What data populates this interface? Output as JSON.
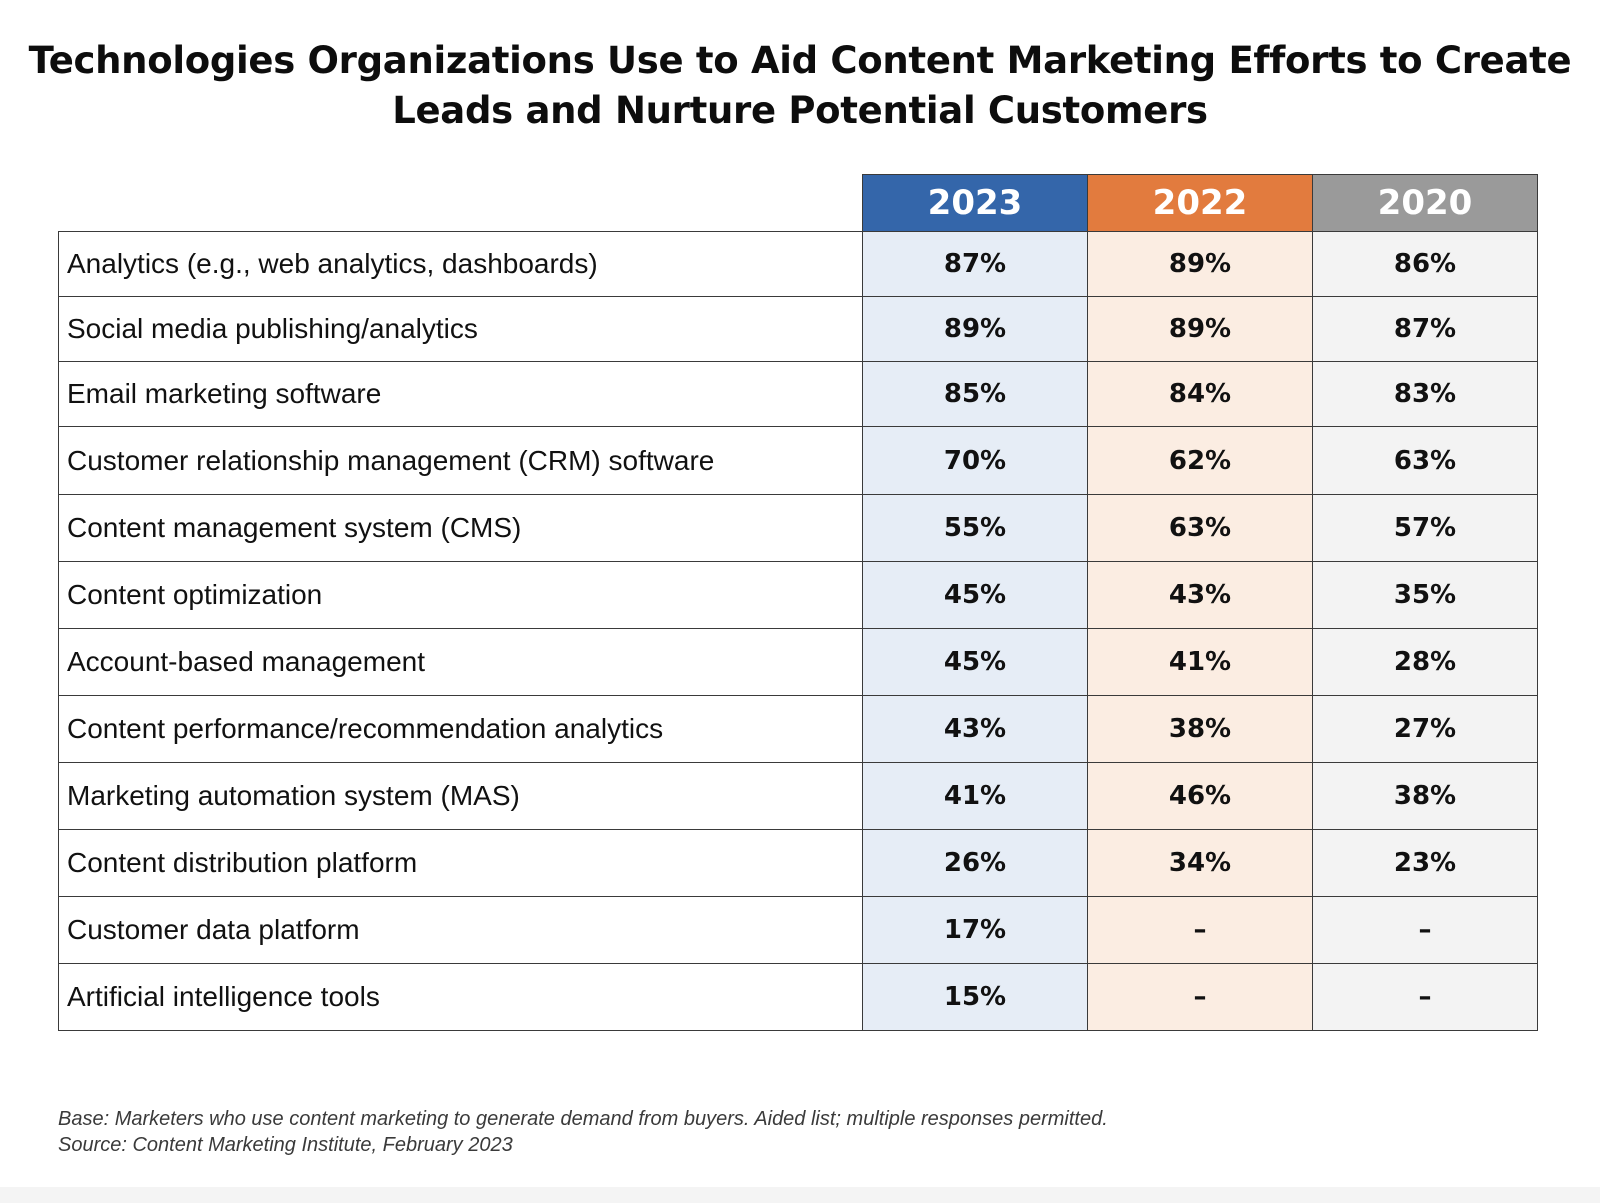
{
  "chart_data": {
    "type": "table",
    "title_lines": [
      "Technologies Organizations Use to Aid Content Marketing Efforts to Create",
      "Leads and Nurture Potential Customers"
    ],
    "columns": [
      "2023",
      "2022",
      "2020"
    ],
    "column_colors": {
      "header": [
        "#3466aa",
        "#e27b3e",
        "#9a9a9a"
      ],
      "cell": [
        "#e6edf6",
        "#fbede2",
        "#f3f3f3"
      ]
    },
    "rows": [
      {
        "label": "Analytics (e.g., web analytics, dashboards)",
        "values": [
          "87%",
          "89%",
          "86%"
        ]
      },
      {
        "label": "Social media publishing/analytics",
        "values": [
          "89%",
          "89%",
          "87%"
        ]
      },
      {
        "label": "Email marketing software",
        "values": [
          "85%",
          "84%",
          "83%"
        ]
      },
      {
        "label": "Customer relationship management (CRM) software",
        "values": [
          "70%",
          "62%",
          "63%"
        ]
      },
      {
        "label": "Content management system (CMS)",
        "values": [
          "55%",
          "63%",
          "57%"
        ]
      },
      {
        "label": "Content optimization",
        "values": [
          "45%",
          "43%",
          "35%"
        ]
      },
      {
        "label": "Account-based management",
        "values": [
          "45%",
          "41%",
          "28%"
        ]
      },
      {
        "label": "Content performance/recommendation analytics",
        "values": [
          "43%",
          "38%",
          "27%"
        ]
      },
      {
        "label": "Marketing automation system (MAS)",
        "values": [
          "41%",
          "46%",
          "38%"
        ]
      },
      {
        "label": "Content distribution platform",
        "values": [
          "26%",
          "34%",
          "23%"
        ]
      },
      {
        "label": "Customer data platform",
        "values": [
          "17%",
          "–",
          "–"
        ]
      },
      {
        "label": "Artificial intelligence tools",
        "values": [
          "15%",
          "–",
          "–"
        ]
      }
    ],
    "footnotes": [
      "Base: Marketers who use content marketing to generate demand from buyers. Aided list; multiple responses permitted.",
      "Source: Content Marketing Institute, February 2023"
    ]
  }
}
